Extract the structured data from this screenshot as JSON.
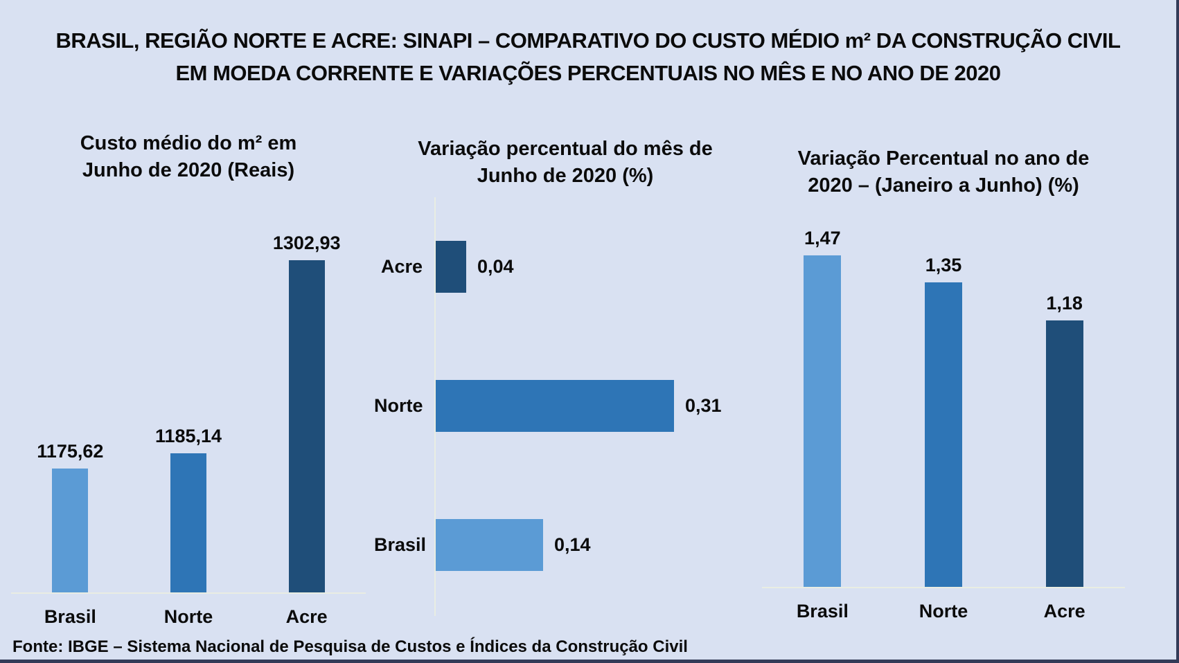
{
  "page": {
    "title": "BRASIL, REGIÃO NORTE E ACRE: SINAPI – COMPARATIVO DO CUSTO MÉDIO m² DA CONSTRUÇÃO CIVIL EM MOEDA CORRENTE E VARIAÇÕES PERCENTUAIS NO MÊS E NO ANO DE 2020",
    "source": "Fonte: IBGE – Sistema Nacional de Pesquisa de Custos e Índices da Construção Civil"
  },
  "colors": {
    "background": "#D9E1F2",
    "frame_border": "#333B58",
    "axis_line": "#E9EDE3",
    "text": "#0B0B0B",
    "bar_light_blue": "#5B9BD5",
    "bar_medium_blue": "#2E75B6",
    "bar_dark_blue": "#1F4E79"
  },
  "chart_data": [
    {
      "type": "bar",
      "title": "Custo médio do m² em Junho de 2020 (Reais)",
      "categories": [
        "Brasil",
        "Norte",
        "Acre"
      ],
      "values": [
        1175.62,
        1185.14,
        1302.93
      ],
      "value_labels": [
        "1175,62",
        "1185,14",
        "1302,93"
      ],
      "bar_colors": [
        "#5B9BD5",
        "#2E75B6",
        "#1F4E79"
      ],
      "ylabel": "Reais",
      "ylim": [
        1100,
        1340
      ],
      "grid": false,
      "legend": false,
      "data_labels": true
    },
    {
      "type": "bar-horizontal",
      "title": "Variação percentual do mês de Junho de 2020 (%)",
      "categories": [
        "Acre",
        "Norte",
        "Brasil"
      ],
      "values": [
        0.04,
        0.31,
        0.14
      ],
      "value_labels": [
        "0,04",
        "0,31",
        "0,14"
      ],
      "bar_colors": [
        "#1F4E79",
        "#2E75B6",
        "#5B9BD5"
      ],
      "xlabel": "%",
      "xlim": [
        0,
        0.35
      ],
      "grid": false,
      "legend": false,
      "data_labels": true
    },
    {
      "type": "bar",
      "title": "Variação Percentual no ano de 2020 – (Janeiro a Junho) (%)",
      "categories": [
        "Brasil",
        "Norte",
        "Acre"
      ],
      "values": [
        1.47,
        1.35,
        1.18
      ],
      "value_labels": [
        "1,47",
        "1,35",
        "1,18"
      ],
      "bar_colors": [
        "#5B9BD5",
        "#2E75B6",
        "#1F4E79"
      ],
      "ylabel": "%",
      "ylim": [
        0,
        1.65
      ],
      "grid": false,
      "legend": false,
      "data_labels": true
    }
  ]
}
